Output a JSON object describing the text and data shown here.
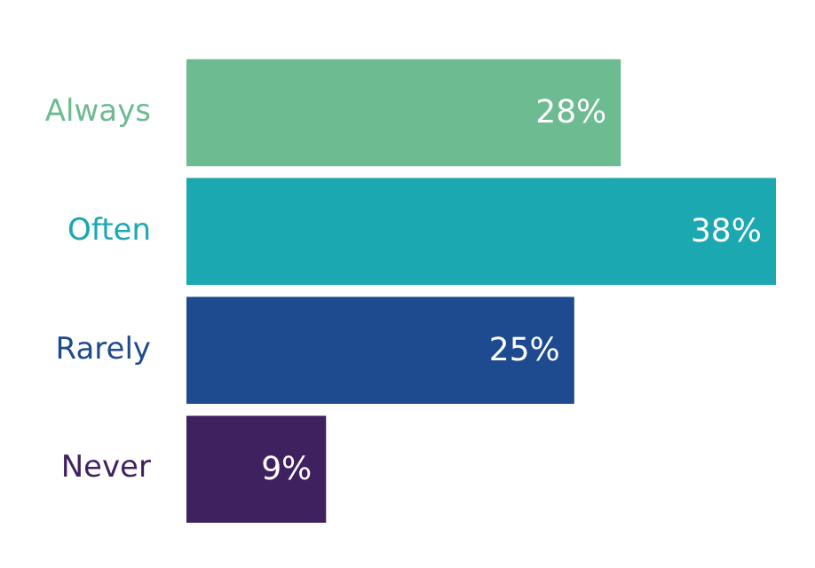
{
  "chart_data": {
    "type": "bar",
    "orientation": "horizontal",
    "categories": [
      "Always",
      "Often",
      "Rarely",
      "Never"
    ],
    "values": [
      28,
      38,
      25,
      9
    ],
    "colors": [
      "#6dbb91",
      "#1ba8b0",
      "#1e4a8f",
      "#40215f"
    ],
    "value_labels": [
      "28%",
      "38%",
      "25%",
      "9%"
    ],
    "legend": false
  }
}
